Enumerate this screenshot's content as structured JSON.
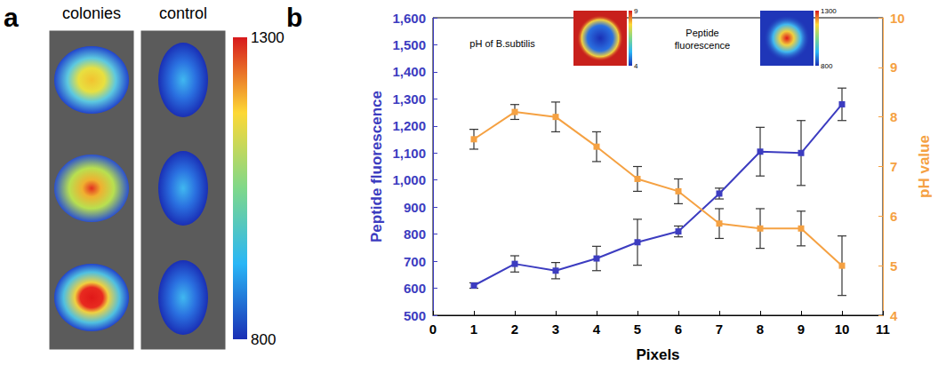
{
  "panel_a": {
    "label": "a",
    "columns": [
      "colonies",
      "control"
    ],
    "colorbar": {
      "range": [
        800,
        1300
      ],
      "ticks": [
        800,
        1300
      ]
    }
  },
  "chart_data": {
    "type": "line",
    "panel_label": "b",
    "xlabel": "Pixels",
    "ylabel": "Peptide fluorescence",
    "y2label": "pH value",
    "x": [
      1,
      2,
      3,
      4,
      5,
      6,
      7,
      8,
      9,
      10
    ],
    "xlim": [
      0,
      11
    ],
    "xticks": [
      0,
      1,
      2,
      3,
      4,
      5,
      6,
      7,
      8,
      9,
      10,
      11
    ],
    "ylim": [
      500,
      1600
    ],
    "yticks": [
      500,
      600,
      700,
      800,
      900,
      1000,
      1100,
      1200,
      1300,
      1400,
      1500,
      1600
    ],
    "y2lim": [
      4,
      10
    ],
    "y2ticks": [
      4,
      5,
      6,
      7,
      8,
      9,
      10
    ],
    "grid": false,
    "series": [
      {
        "name": "Peptide fluorescence",
        "color": "#3c3cc0",
        "marker": "square",
        "values": [
          610,
          690,
          665,
          710,
          770,
          810,
          950,
          1105,
          1100,
          1280
        ],
        "errors": [
          10,
          30,
          30,
          45,
          85,
          20,
          20,
          90,
          120,
          60
        ]
      },
      {
        "name": "pH value",
        "color": "#f5a142",
        "marker": "square",
        "axis": "y2",
        "values": [
          7.55,
          8.1,
          8.0,
          7.4,
          6.75,
          6.5,
          5.85,
          5.75,
          5.75,
          5.0
        ],
        "errors": [
          0.2,
          0.15,
          0.3,
          0.3,
          0.25,
          0.25,
          0.3,
          0.4,
          0.35,
          0.6
        ]
      }
    ],
    "insets": [
      {
        "title": "pH of B.subtilis",
        "colorbar": {
          "range": [
            4,
            9
          ],
          "ticks": [
            4,
            9
          ]
        }
      },
      {
        "title": "Peptide fluorescence",
        "colorbar": {
          "range": [
            800,
            1300
          ],
          "ticks": [
            800,
            1300
          ]
        }
      }
    ]
  }
}
